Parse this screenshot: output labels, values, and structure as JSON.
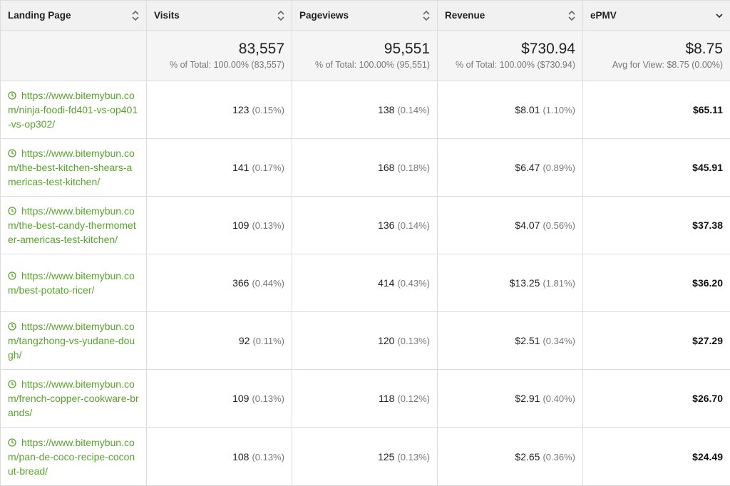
{
  "columns": [
    {
      "label": "Landing Page",
      "icon": "sort-icon"
    },
    {
      "label": "Visits",
      "icon": "sort-icon"
    },
    {
      "label": "Pageviews",
      "icon": "sort-icon"
    },
    {
      "label": "Revenue",
      "icon": "sort-icon"
    },
    {
      "label": "ePMV",
      "icon": "sort-desc-icon"
    }
  ],
  "totals": {
    "visits": {
      "value": "83,557",
      "sub": "% of Total: 100.00% (83,557)"
    },
    "pageviews": {
      "value": "95,551",
      "sub": "% of Total: 100.00% (95,551)"
    },
    "revenue": {
      "value": "$730.94",
      "sub": "% of Total: 100.00% ($730.94)"
    },
    "epmv": {
      "value": "$8.75",
      "sub": "Avg for View: $8.75 (0.00%)"
    }
  },
  "rows": [
    {
      "url": "https://www.bitemybun.com/ninja-foodi-fd401-vs-op401-vs-op302/",
      "visits": "123",
      "visits_pct": "(0.15%)",
      "pageviews": "138",
      "pageviews_pct": "(0.14%)",
      "revenue": "$8.01",
      "revenue_pct": "(1.10%)",
      "epmv": "$65.11"
    },
    {
      "url": "https://www.bitemybun.com/the-best-kitchen-shears-americas-test-kitchen/",
      "visits": "141",
      "visits_pct": "(0.17%)",
      "pageviews": "168",
      "pageviews_pct": "(0.18%)",
      "revenue": "$6.47",
      "revenue_pct": "(0.89%)",
      "epmv": "$45.91"
    },
    {
      "url": "https://www.bitemybun.com/the-best-candy-thermometer-americas-test-kitchen/",
      "visits": "109",
      "visits_pct": "(0.13%)",
      "pageviews": "136",
      "pageviews_pct": "(0.14%)",
      "revenue": "$4.07",
      "revenue_pct": "(0.56%)",
      "epmv": "$37.38"
    },
    {
      "url": "https://www.bitemybun.com/best-potato-ricer/",
      "visits": "366",
      "visits_pct": "(0.44%)",
      "pageviews": "414",
      "pageviews_pct": "(0.43%)",
      "revenue": "$13.25",
      "revenue_pct": "(1.81%)",
      "epmv": "$36.20"
    },
    {
      "url": "https://www.bitemybun.com/tangzhong-vs-yudane-dough/",
      "visits": "92",
      "visits_pct": "(0.11%)",
      "pageviews": "120",
      "pageviews_pct": "(0.13%)",
      "revenue": "$2.51",
      "revenue_pct": "(0.34%)",
      "epmv": "$27.29"
    },
    {
      "url": "https://www.bitemybun.com/french-copper-cookware-brands/",
      "visits": "109",
      "visits_pct": "(0.13%)",
      "pageviews": "118",
      "pageviews_pct": "(0.12%)",
      "revenue": "$2.91",
      "revenue_pct": "(0.40%)",
      "epmv": "$26.70"
    },
    {
      "url": "https://www.bitemybun.com/pan-de-coco-recipe-coconut-bread/",
      "visits": "108",
      "visits_pct": "(0.13%)",
      "pageviews": "125",
      "pageviews_pct": "(0.13%)",
      "revenue": "$2.65",
      "revenue_pct": "(0.36%)",
      "epmv": "$24.49"
    }
  ],
  "colors": {
    "link": "#58a42b",
    "header_bg": "#f1f1f1",
    "totals_bg": "#f5f5f5",
    "muted": "#777777"
  }
}
